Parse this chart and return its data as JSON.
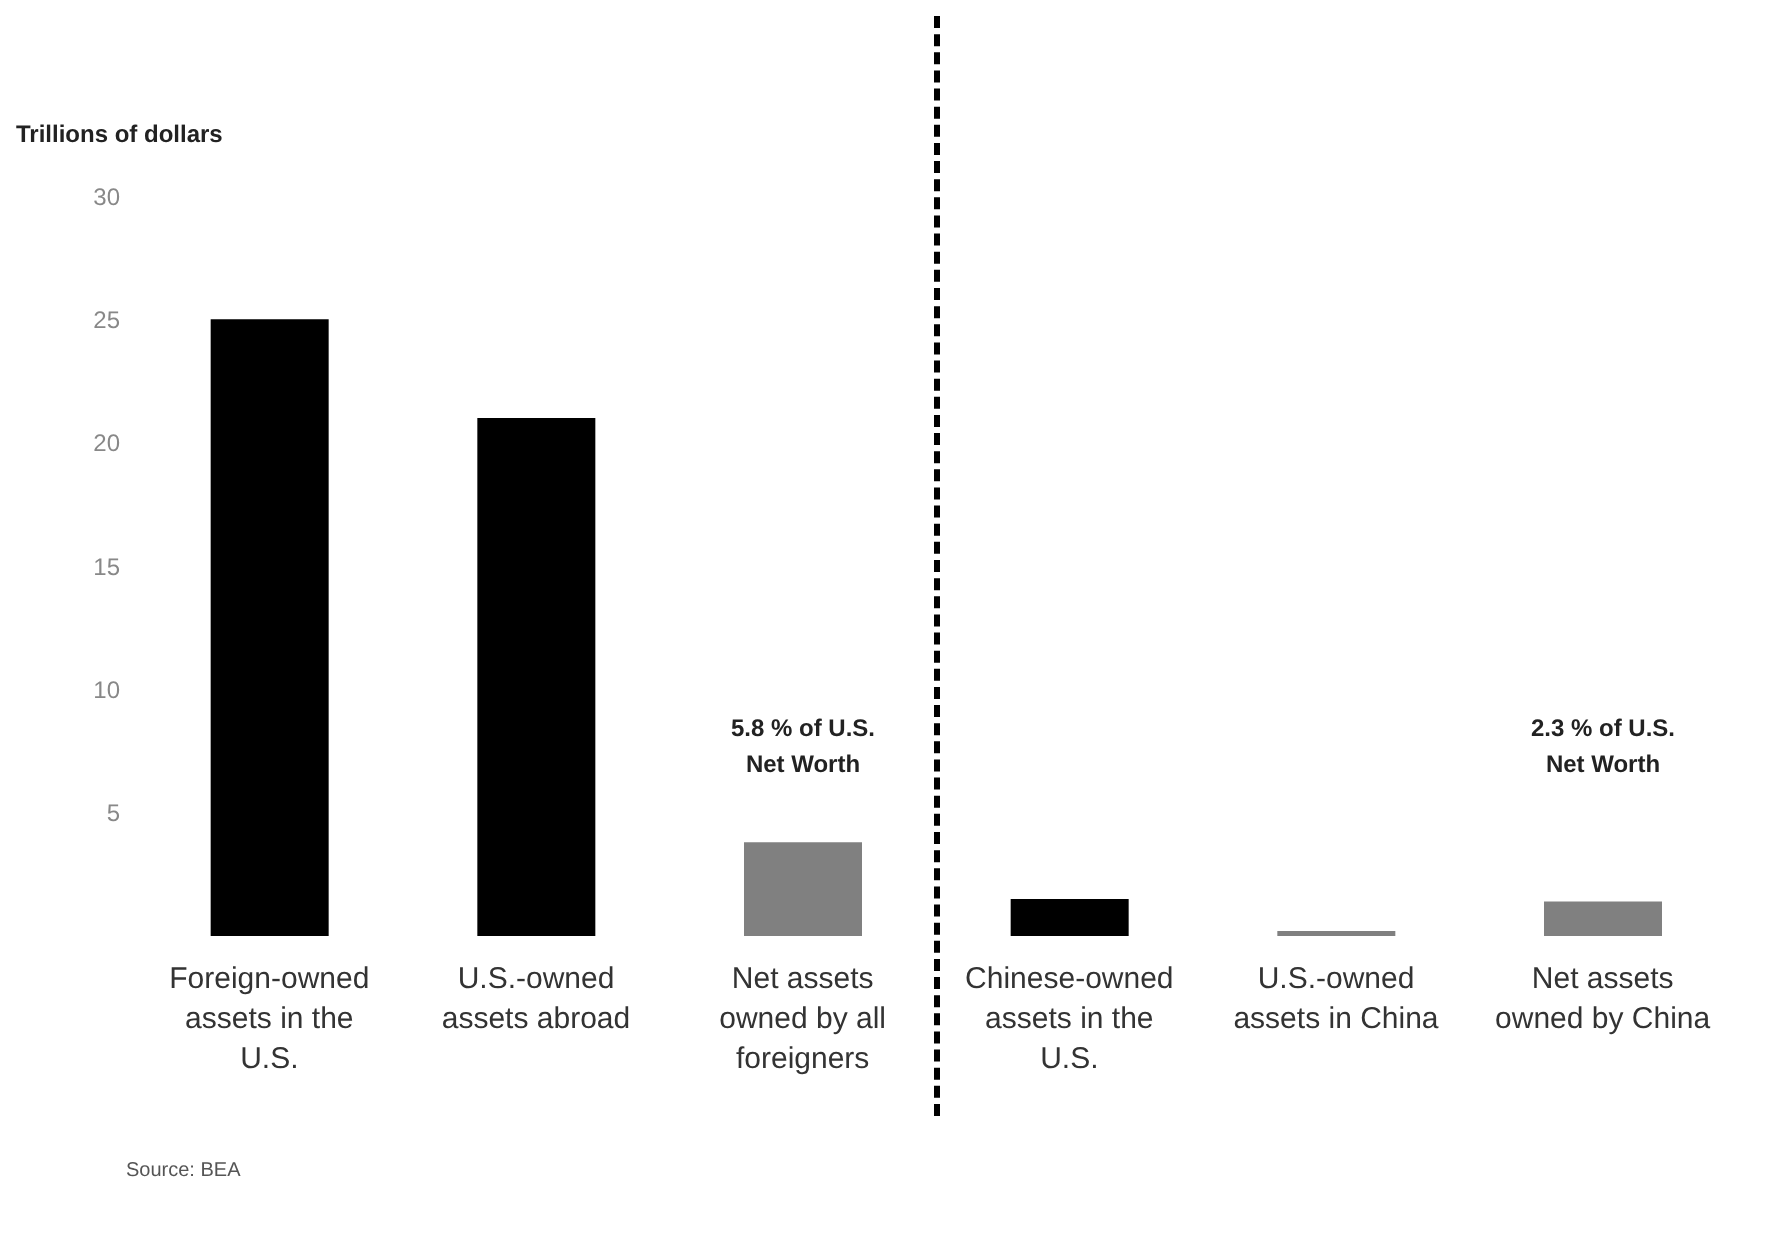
{
  "chart_data": {
    "type": "bar",
    "ylabel": "Trillions of dollars",
    "categories": [
      "Foreign-owned assets in the U.S.",
      "U.S.-owned assets abroad",
      "Net assets owned by all foreigners",
      "Chinese-owned assets in the U.S.",
      "U.S.-owned assets in China",
      "Net assets owned by China"
    ],
    "values": [
      25,
      21,
      3.8,
      1.5,
      0.2,
      1.4
    ],
    "colors": [
      "#000000",
      "#000000",
      "#808080",
      "#000000",
      "#808080",
      "#808080"
    ],
    "ylim": [
      0,
      30
    ],
    "yticks": [
      5,
      10,
      15,
      20,
      25,
      30
    ],
    "grid": false,
    "annotations": [
      "5.8 % of U.S. Net Worth",
      "2.3 % of U.S. Net Worth",
      "Source: BEA"
    ]
  }
}
